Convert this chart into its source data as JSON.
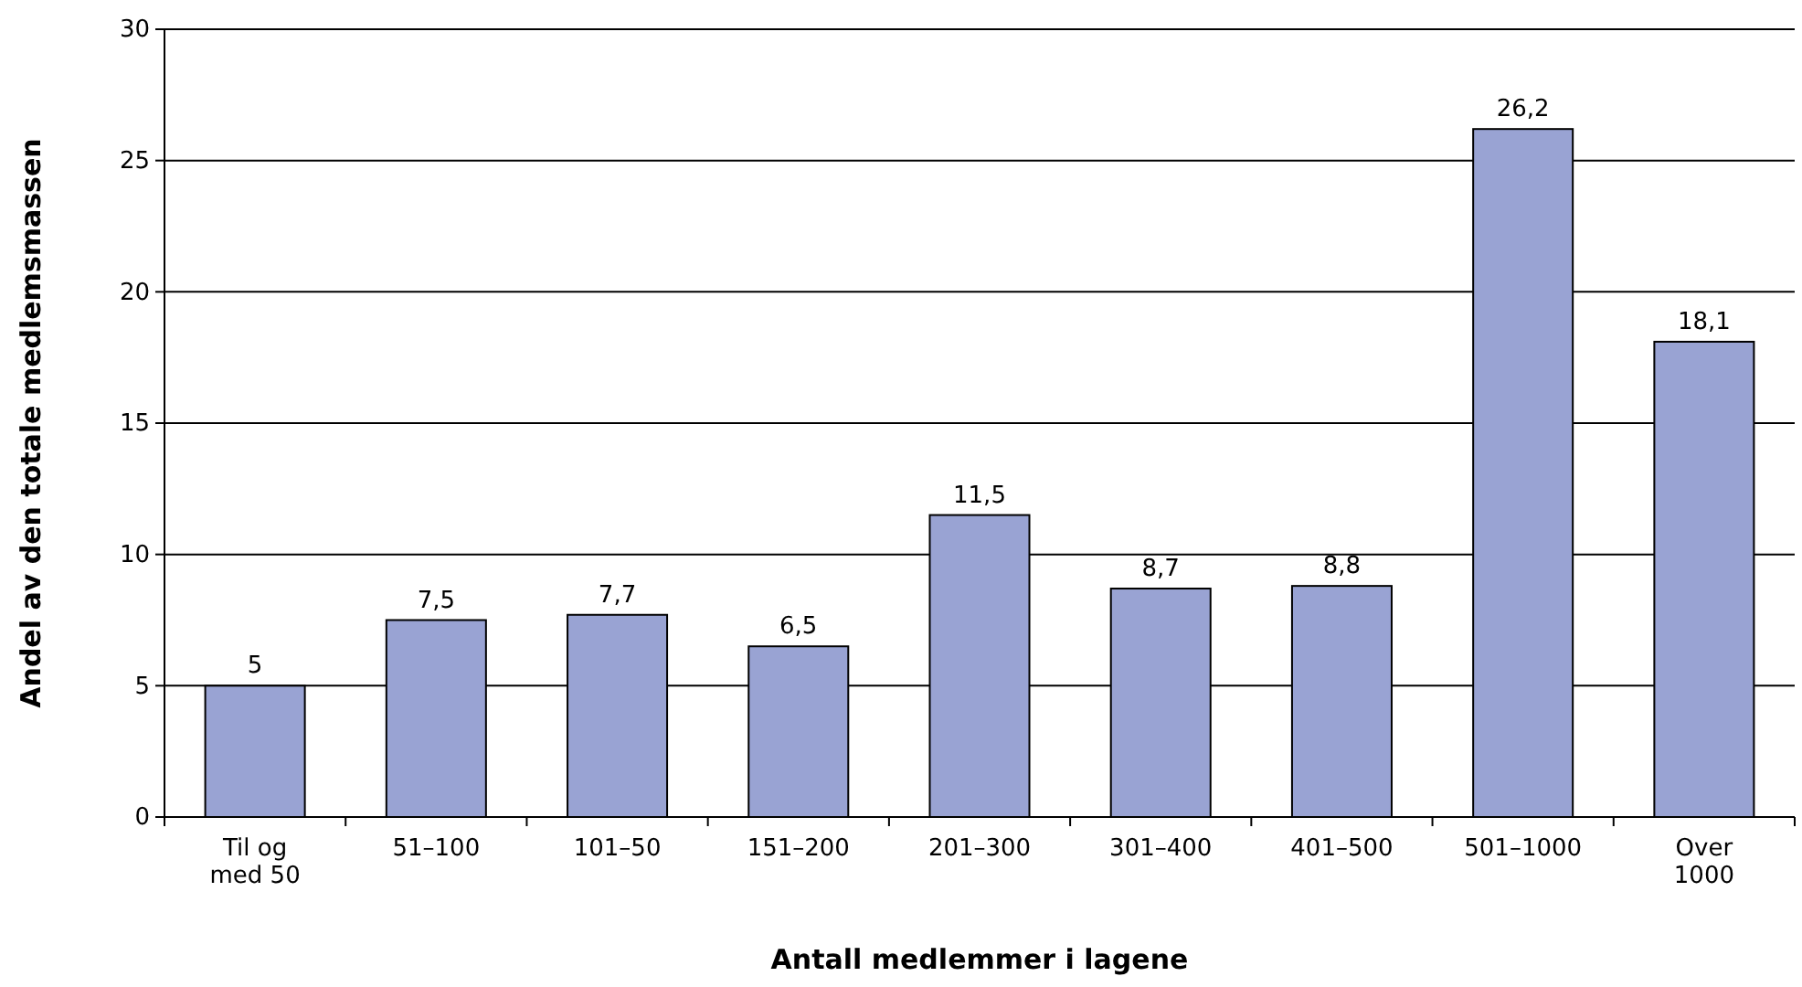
{
  "chart_data": {
    "type": "bar",
    "xlabel": "Antall medlemmer i lagene",
    "ylabel": "Andel av den totale medlemsmassen",
    "categories": [
      "Til og med 50",
      "51–100",
      "101–50",
      "151–200",
      "201–300",
      "301–400",
      "401–500",
      "501–1000",
      "Over 1000"
    ],
    "values": [
      5,
      7.5,
      7.7,
      6.5,
      11.5,
      8.7,
      8.8,
      26.2,
      18.1
    ],
    "value_labels": [
      "5",
      "7,5",
      "7,7",
      "6,5",
      "11,5",
      "8,7",
      "8,8",
      "26,2",
      "18,1"
    ],
    "color": "#99a3d3",
    "ylim": [
      0,
      30
    ],
    "yticks": [
      0,
      5,
      10,
      15,
      20,
      25,
      30
    ],
    "grid": "y"
  }
}
